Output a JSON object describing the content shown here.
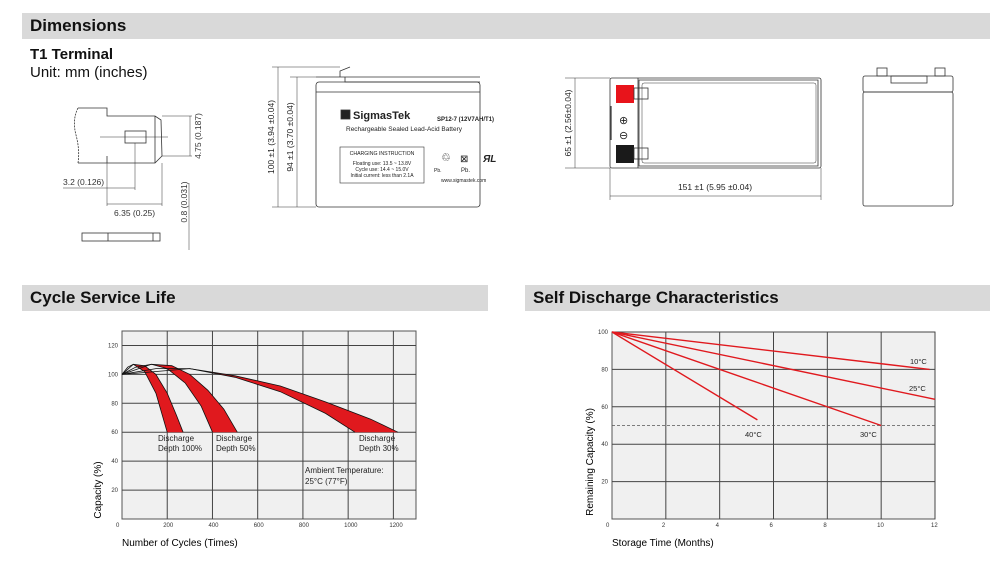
{
  "sections": {
    "dimensions": "Dimensions",
    "cycle_life": "Cycle Service Life",
    "self_discharge": "Self Discharge Characteristics"
  },
  "terminal": {
    "title": "T1 Terminal",
    "unit": "Unit: mm (inches)",
    "dims": {
      "height": "4.75 (0.187)",
      "hole_offset": "3.2 (0.126)",
      "width": "6.35 (0.25)",
      "thickness": "0.8 (0.031)"
    }
  },
  "battery": {
    "brand": "SigmasTek",
    "model": "SP12-7 (12V7AH/T1)",
    "subtitle": "Rechargeable Sealed Lead-Acid Battery",
    "charging": {
      "title": "CHARGING INSTRUCTION",
      "lines": [
        "Floating use: 13.5 ~ 13.8V",
        "Cycle use: 14.4 ~ 15.0V",
        "Initial current: less than 2.1A"
      ]
    },
    "pb1": "Pb.",
    "pb2": "Pb.",
    "website": "www.sigmastek.com",
    "dims": {
      "total_height": "100 ±1 (3.94 ±0.04)",
      "case_height": "94 ±1 (3.70 ±0.04)",
      "width": "65 ±1 (2.56±0.04)",
      "length": "151 ±1 (5.95 ±0.04)"
    },
    "terminal_colors": {
      "positive": "#e8141b",
      "negative": "#1a1a1a"
    }
  },
  "chart_data": [
    {
      "type": "area",
      "title": "Cycle Service Life",
      "xlabel": "Number of Cycles (Times)",
      "ylabel": "Capacity (%)",
      "xlim": [
        0,
        1300
      ],
      "ylim": [
        0,
        130
      ],
      "xticks": [
        0,
        200,
        400,
        600,
        800,
        1000,
        1200
      ],
      "yticks": [
        20,
        40,
        60,
        80,
        100,
        120
      ],
      "grid": true,
      "fill_color": "#e0191e",
      "bands": [
        {
          "label": [
            "Discharge",
            "Depth 100%"
          ],
          "inner": [
            [
              0,
              100
            ],
            [
              25,
              105
            ],
            [
              50,
              107
            ],
            [
              100,
              102
            ],
            [
              150,
              87
            ],
            [
              200,
              60
            ]
          ],
          "outer": [
            [
              50,
              107
            ],
            [
              100,
              106
            ],
            [
              150,
              100
            ],
            [
              200,
              87
            ],
            [
              240,
              72
            ],
            [
              270,
              60
            ]
          ]
        },
        {
          "label": [
            "Discharge",
            "Depth 50%"
          ],
          "inner": [
            [
              0,
              100
            ],
            [
              60,
              105
            ],
            [
              130,
              107
            ],
            [
              200,
              104
            ],
            [
              280,
              94
            ],
            [
              350,
              78
            ],
            [
              400,
              60
            ]
          ],
          "outer": [
            [
              130,
              107
            ],
            [
              220,
              106
            ],
            [
              300,
              100
            ],
            [
              380,
              89
            ],
            [
              450,
              76
            ],
            [
              510,
              60
            ]
          ]
        },
        {
          "label": [
            "Discharge",
            "Depth 30%"
          ],
          "inner": [
            [
              0,
              100
            ],
            [
              150,
              104
            ],
            [
              300,
              104
            ],
            [
              500,
              98
            ],
            [
              700,
              88
            ],
            [
              900,
              73
            ],
            [
              1030,
              60
            ]
          ],
          "outer": [
            [
              300,
              104
            ],
            [
              500,
              99
            ],
            [
              700,
              92
            ],
            [
              900,
              81
            ],
            [
              1100,
              69
            ],
            [
              1220,
              60
            ]
          ]
        }
      ],
      "annotation": [
        "Ambient Temperature:",
        "25°C (77°F)"
      ]
    },
    {
      "type": "line",
      "title": "Self Discharge Characteristics",
      "xlabel": "Storage Time (Months)",
      "ylabel": "Remaining Capacity (%)",
      "xlim": [
        0,
        12
      ],
      "ylim": [
        0,
        100
      ],
      "xticks": [
        0,
        2,
        4,
        6,
        8,
        10,
        12
      ],
      "yticks": [
        20,
        40,
        60,
        80,
        100
      ],
      "grid": true,
      "reference_line": 50,
      "line_color": "#e0191e",
      "series": [
        {
          "name": "10°C",
          "x": [
            0,
            11.8
          ],
          "y": [
            100,
            80
          ]
        },
        {
          "name": "25°C",
          "x": [
            0,
            12
          ],
          "y": [
            100,
            64
          ]
        },
        {
          "name": "30°C",
          "x": [
            0,
            10
          ],
          "y": [
            100,
            50
          ]
        },
        {
          "name": "40°C",
          "x": [
            0,
            5.4
          ],
          "y": [
            100,
            53
          ]
        }
      ]
    }
  ]
}
